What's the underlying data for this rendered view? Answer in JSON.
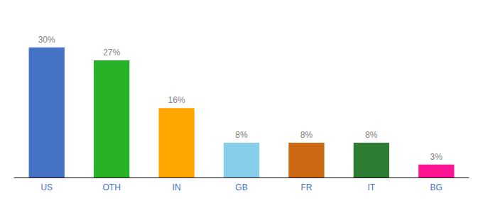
{
  "chart_data": {
    "type": "bar",
    "categories": [
      "US",
      "OTH",
      "IN",
      "GB",
      "FR",
      "IT",
      "BG"
    ],
    "values": [
      30,
      27,
      16,
      8,
      8,
      8,
      3
    ],
    "value_labels": [
      "30%",
      "27%",
      "16%",
      "8%",
      "8%",
      "8%",
      "3%"
    ],
    "colors": [
      "#4472C4",
      "#28B228",
      "#FFA500",
      "#87CEEB",
      "#CD6914",
      "#2E7D32",
      "#FF1493"
    ],
    "ylim": [
      0,
      36
    ],
    "grid": false,
    "data_labels": true,
    "tick_labels": "x"
  }
}
